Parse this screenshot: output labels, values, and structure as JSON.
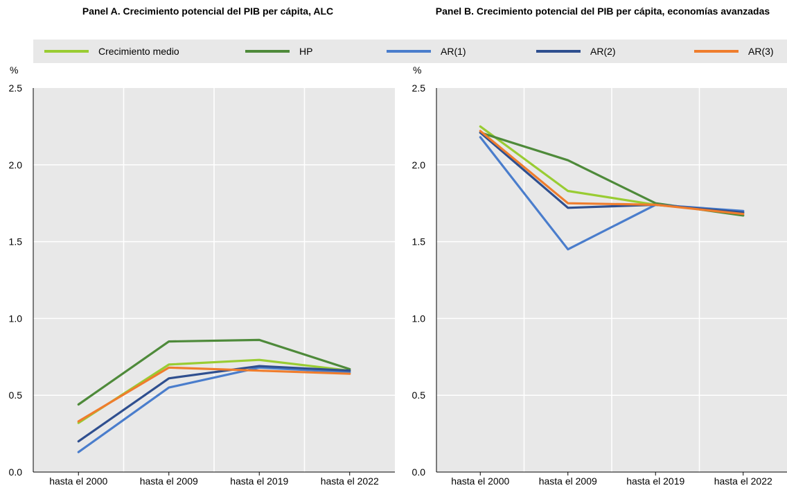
{
  "chart_data": [
    {
      "type": "line",
      "title": "Panel A. Crecimiento potencial del PIB per cápita, ALC",
      "ylabel": "%",
      "categories": [
        "hasta el 2000",
        "hasta el 2009",
        "hasta el 2019",
        "hasta el 2022"
      ],
      "ylim": [
        0,
        2.5
      ],
      "yticks": [
        "0.0",
        "0.5",
        "1.0",
        "1.5",
        "2.0",
        "2.5"
      ],
      "grid": true,
      "series": [
        {
          "name": "Crecimiento medio",
          "color": "#99cc33",
          "values": [
            0.32,
            0.7,
            0.73,
            0.66
          ]
        },
        {
          "name": "HP",
          "color": "#4e8a3a",
          "values": [
            0.44,
            0.85,
            0.86,
            0.67
          ]
        },
        {
          "name": "AR(1)",
          "color": "#4a7dcc",
          "values": [
            0.13,
            0.55,
            0.68,
            0.65
          ]
        },
        {
          "name": "AR(2)",
          "color": "#2f4f8f",
          "values": [
            0.2,
            0.61,
            0.69,
            0.66
          ]
        },
        {
          "name": "AR(3)",
          "color": "#ef7d2d",
          "values": [
            0.33,
            0.68,
            0.66,
            0.64
          ]
        }
      ]
    },
    {
      "type": "line",
      "title": "Panel B. Crecimiento potencial del PIB per cápita, economías avanzadas",
      "ylabel": "%",
      "categories": [
        "hasta el 2000",
        "hasta el 2009",
        "hasta el 2019",
        "hasta el 2022"
      ],
      "ylim": [
        0,
        2.5
      ],
      "yticks": [
        "0.0",
        "0.5",
        "1.0",
        "1.5",
        "2.0",
        "2.5"
      ],
      "grid": true,
      "series": [
        {
          "name": "Crecimiento medio",
          "color": "#99cc33",
          "values": [
            2.25,
            1.83,
            1.74,
            1.69
          ]
        },
        {
          "name": "HP",
          "color": "#4e8a3a",
          "values": [
            2.21,
            2.03,
            1.75,
            1.67
          ]
        },
        {
          "name": "AR(1)",
          "color": "#4a7dcc",
          "values": [
            2.18,
            1.45,
            1.74,
            1.7
          ]
        },
        {
          "name": "AR(2)",
          "color": "#2f4f8f",
          "values": [
            2.21,
            1.72,
            1.74,
            1.69
          ]
        },
        {
          "name": "AR(3)",
          "color": "#ef7d2d",
          "values": [
            2.22,
            1.75,
            1.74,
            1.68
          ]
        }
      ]
    }
  ],
  "legend": [
    {
      "name": "Crecimiento medio",
      "color": "#99cc33"
    },
    {
      "name": "HP",
      "color": "#4e8a3a"
    },
    {
      "name": "AR(1)",
      "color": "#4a7dcc"
    },
    {
      "name": "AR(2)",
      "color": "#2f4f8f"
    },
    {
      "name": "AR(3)",
      "color": "#ef7d2d"
    }
  ]
}
